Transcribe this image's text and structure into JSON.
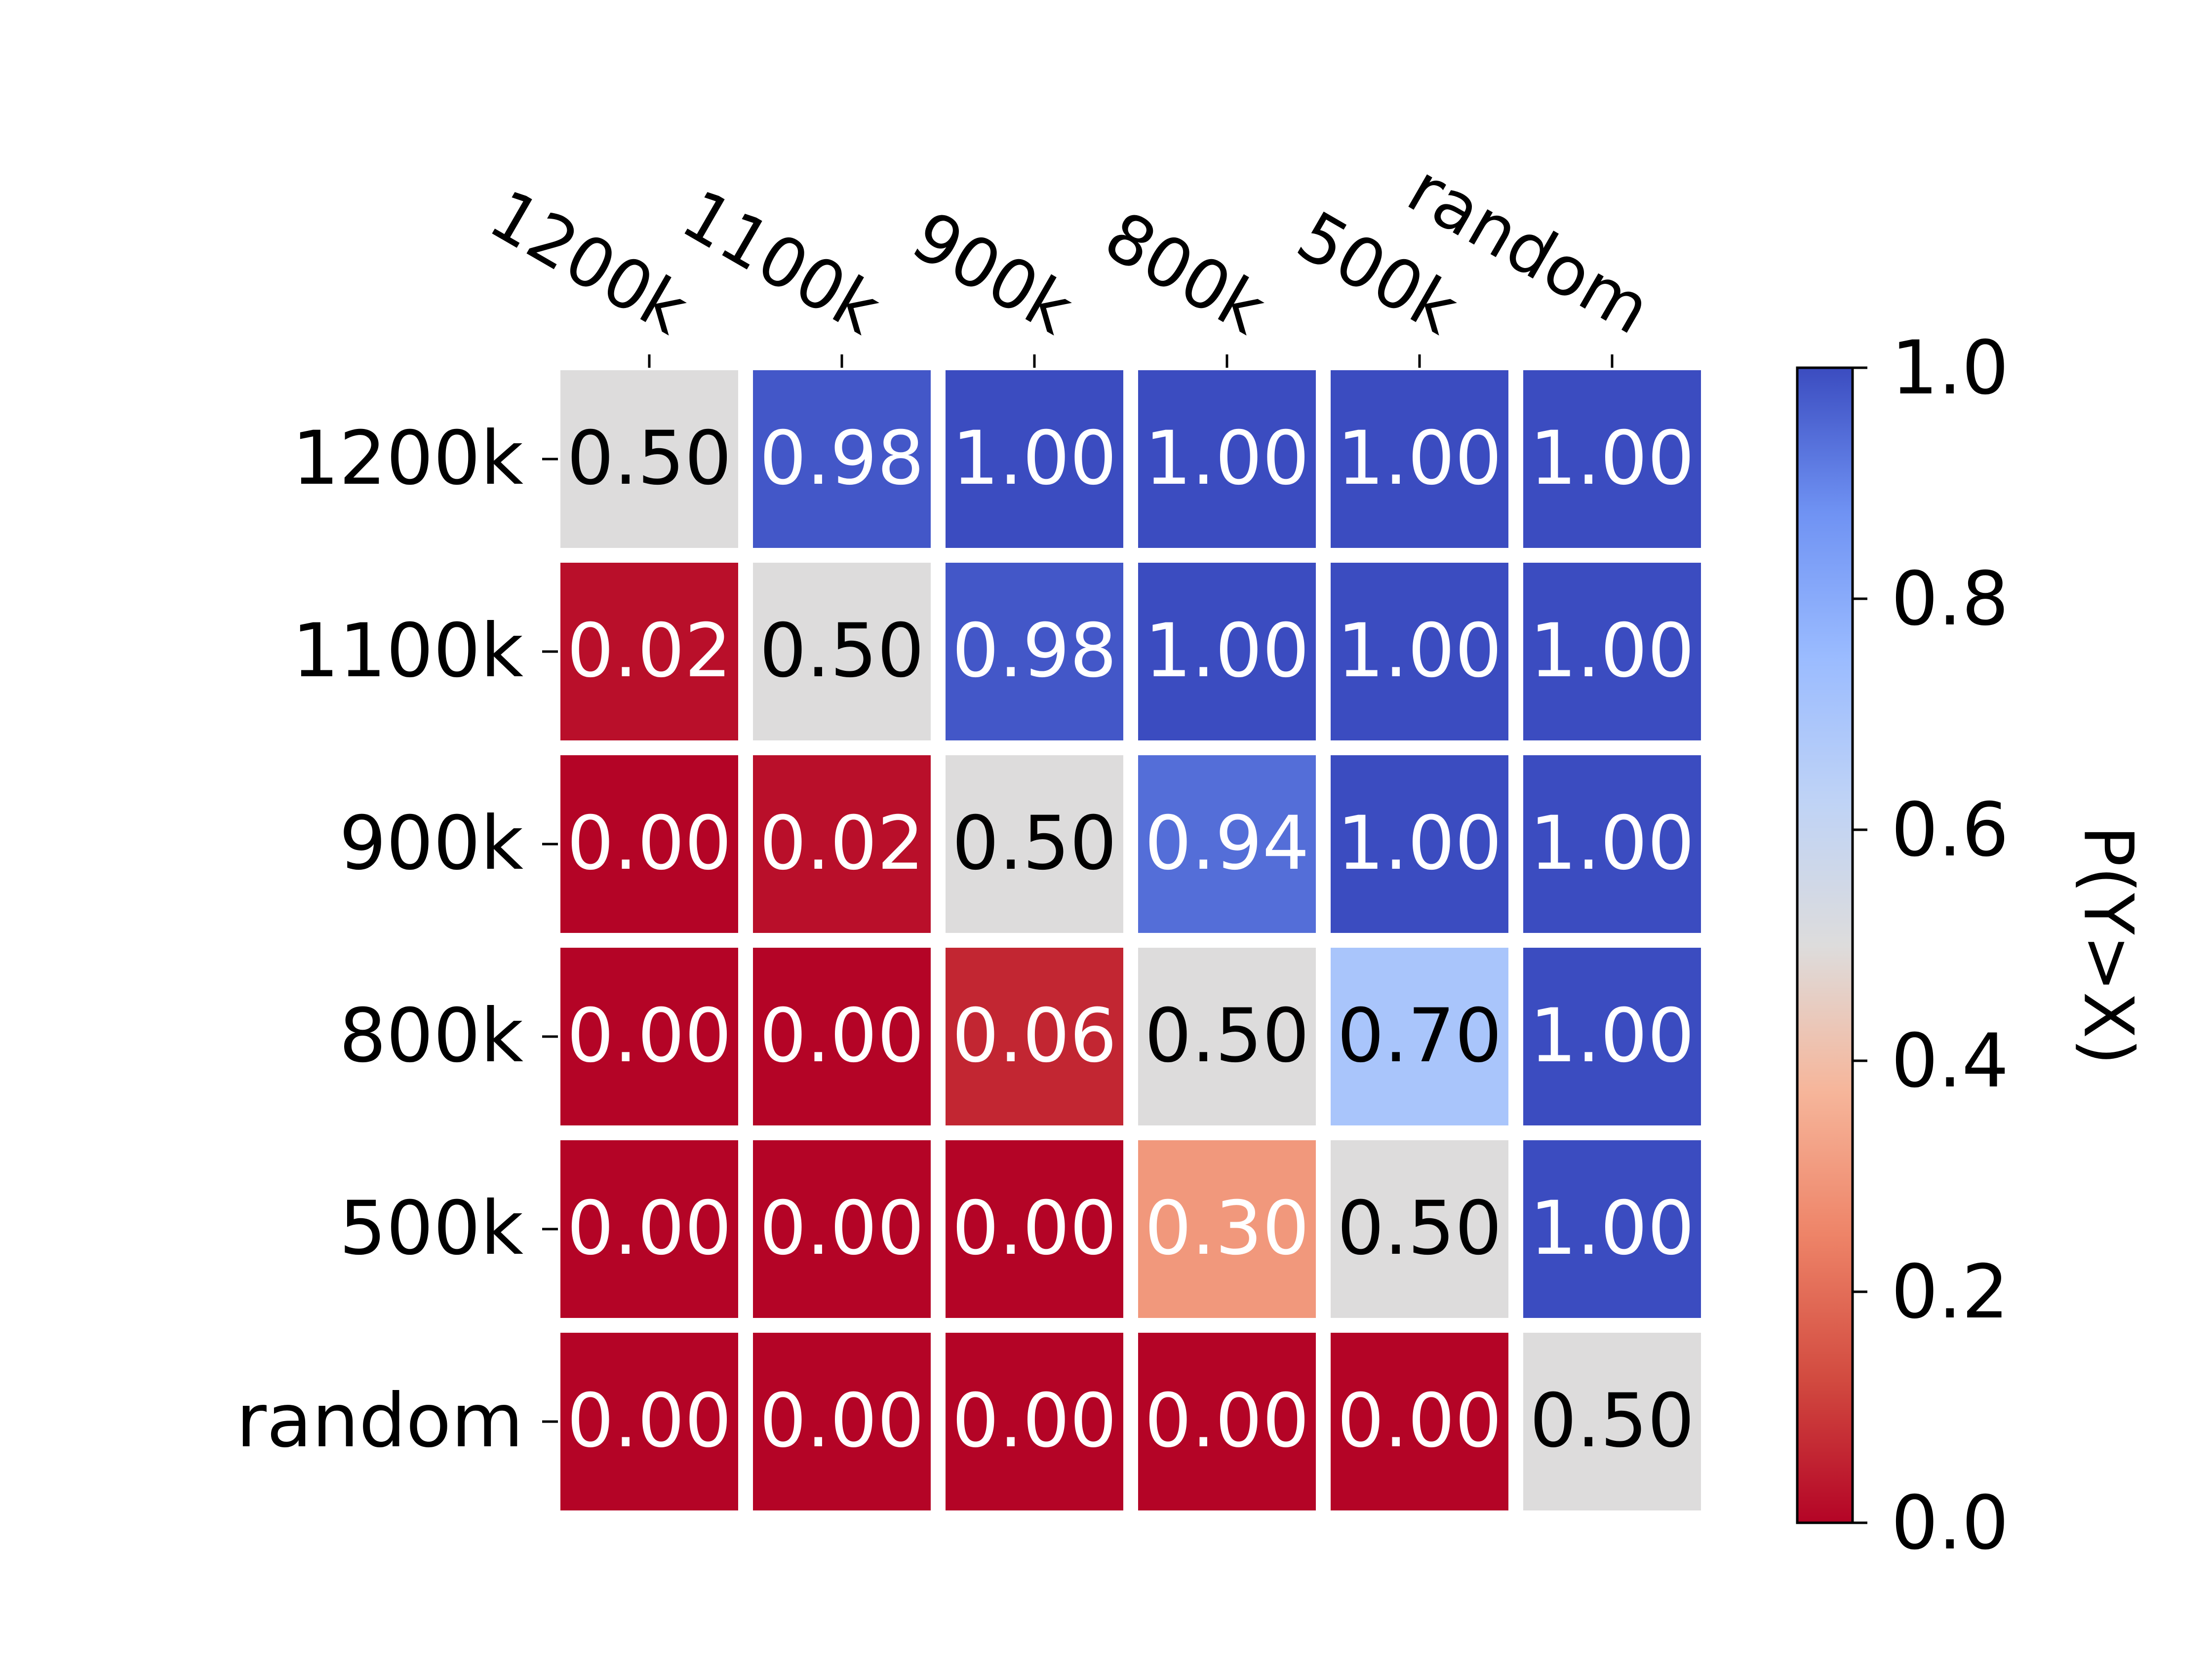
{
  "chart_data": {
    "type": "heatmap",
    "title": "",
    "x_categories": [
      "1200k",
      "1100k",
      "900k",
      "800k",
      "500k",
      "random"
    ],
    "y_categories": [
      "1200k",
      "1100k",
      "900k",
      "800k",
      "500k",
      "random"
    ],
    "values": [
      [
        0.5,
        0.98,
        1.0,
        1.0,
        1.0,
        1.0
      ],
      [
        0.02,
        0.5,
        0.98,
        1.0,
        1.0,
        1.0
      ],
      [
        0.0,
        0.02,
        0.5,
        0.94,
        1.0,
        1.0
      ],
      [
        0.0,
        0.0,
        0.06,
        0.5,
        0.7,
        1.0
      ],
      [
        0.0,
        0.0,
        0.0,
        0.3,
        0.5,
        1.0
      ],
      [
        0.0,
        0.0,
        0.0,
        0.0,
        0.0,
        0.5
      ]
    ],
    "value_format": "2 decimals",
    "colormap": "coolwarm",
    "colorbar": {
      "label": "P(Y>X)",
      "range": [
        0.0,
        1.0
      ],
      "ticks": [
        "0.0",
        "0.2",
        "0.4",
        "0.6",
        "0.8",
        "1.0"
      ],
      "low_color": "#b40426",
      "mid_color": "#dddcdc",
      "high_color": "#3b4cc0"
    },
    "x_axis_position": "top",
    "grid": false,
    "cell_border_color": "#ffffff"
  }
}
